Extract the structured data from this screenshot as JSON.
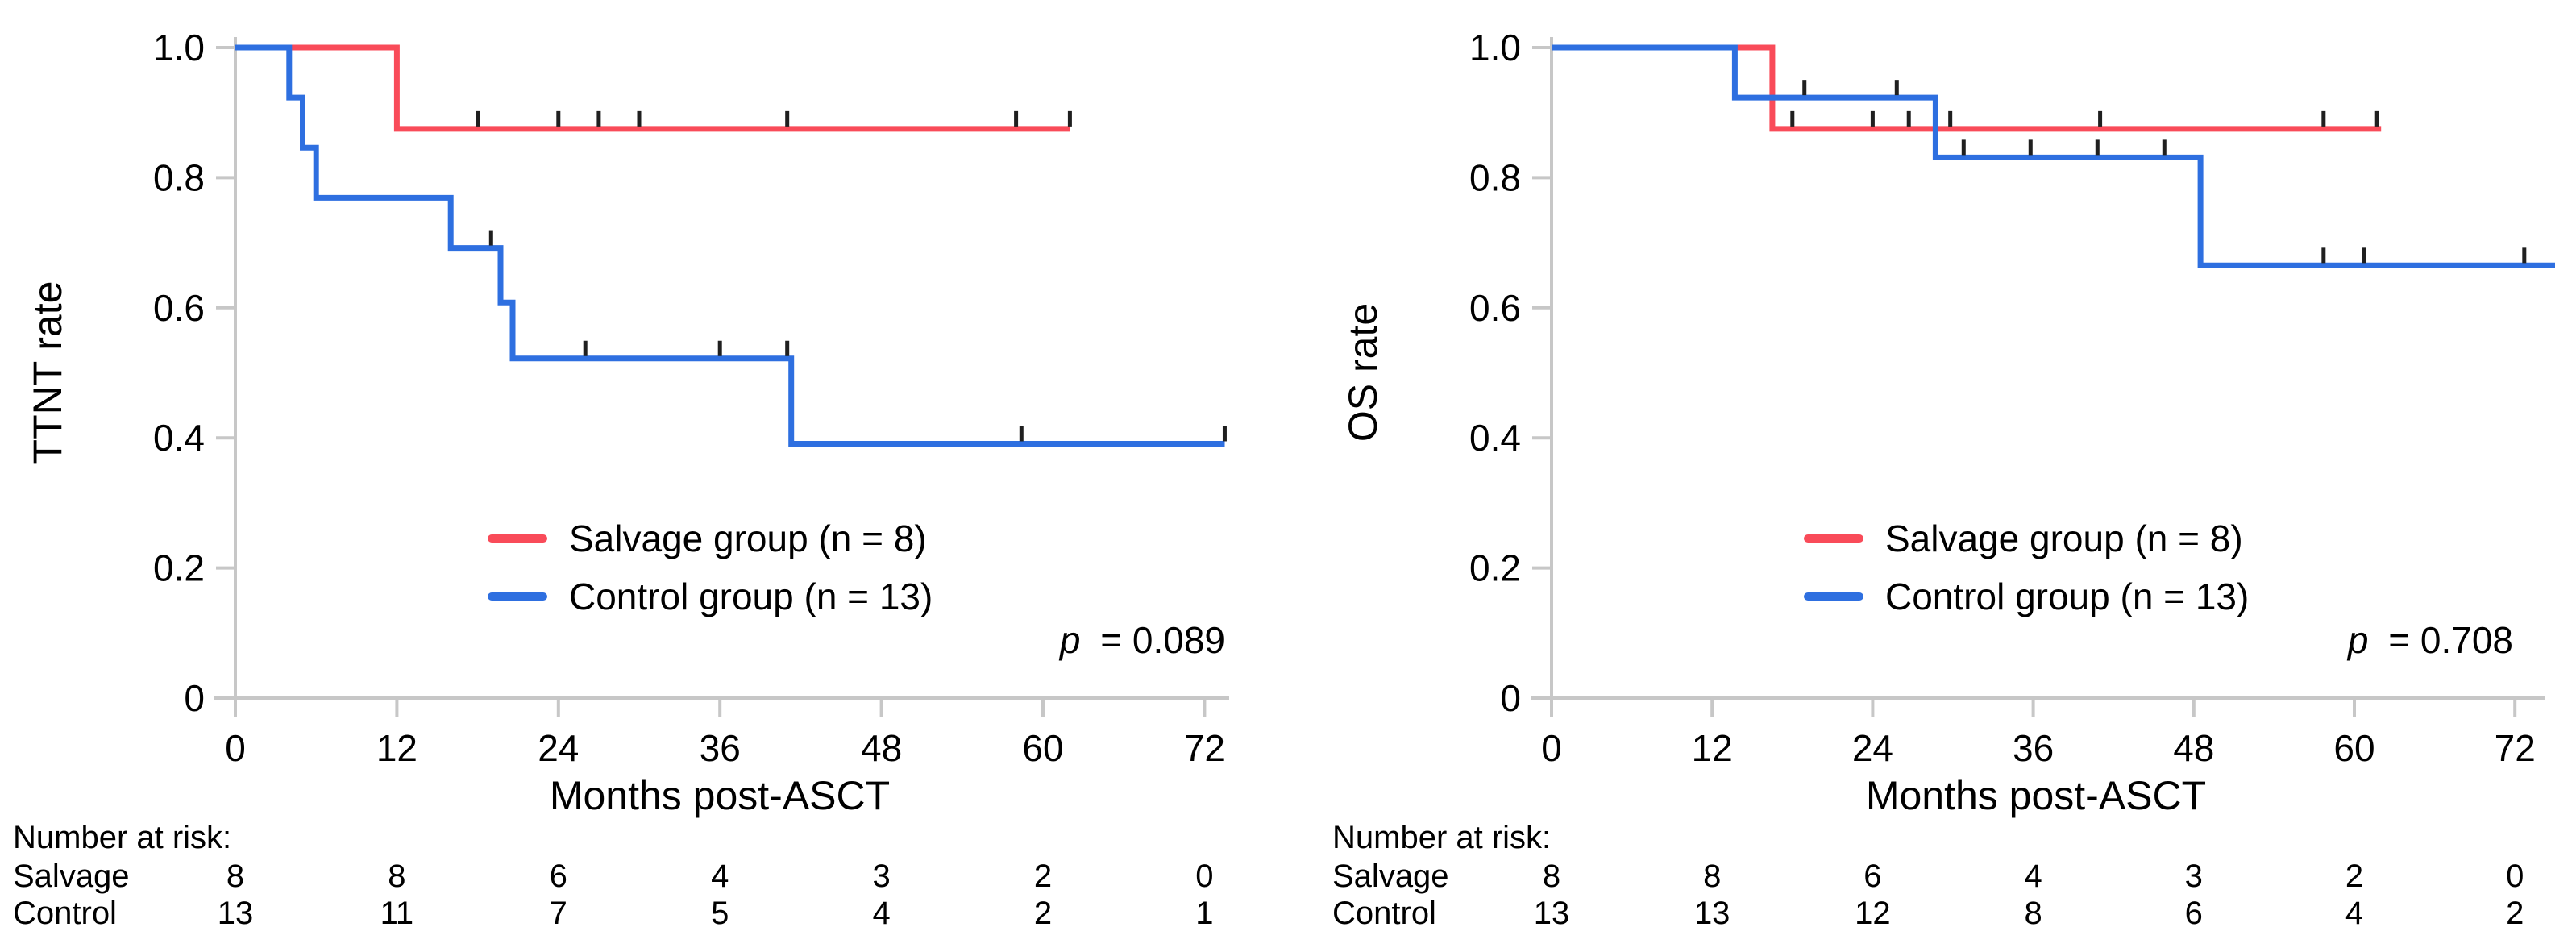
{
  "figure": {
    "colors": {
      "salvage": "#f94b59",
      "control": "#2e6fe0",
      "axis": "#c7c7c7",
      "censor": "#1f1f1f"
    },
    "chart_data": [
      {
        "id": "ttnt",
        "type": "line",
        "km_style": "step",
        "ylabel": "TTNT rate",
        "xlabel": "Months post-ASCT",
        "p_value": {
          "var": "p",
          "rest": "= 0.089"
        },
        "xlim": [
          0,
          76
        ],
        "ylim": [
          0,
          1.0
        ],
        "grid": false,
        "legend_position": "lower-left-inside",
        "x_ticks": [
          0,
          12,
          24,
          36,
          48,
          60,
          72
        ],
        "y_ticks": [
          "1.0",
          "0.8",
          "0.6",
          "0.4",
          "0.2",
          "0"
        ],
        "y_tick_values": [
          1.0,
          0.8,
          0.6,
          0.4,
          0.2,
          0
        ],
        "legend": [
          {
            "label": "Salvage group (n = 8)",
            "color": "#f94b59"
          },
          {
            "label": "Control group (n = 13)",
            "color": "#2e6fe0"
          }
        ],
        "series": [
          {
            "name": "Salvage group",
            "color": "#f94b59",
            "steps": [
              [
                0,
                1.0
              ],
              [
                12,
                1.0
              ],
              [
                12,
                0.875
              ],
              [
                62,
                0.875
              ]
            ],
            "censors": [
              [
                18,
                0.875
              ],
              [
                24,
                0.875
              ],
              [
                27,
                0.875
              ],
              [
                30,
                0.875
              ],
              [
                41,
                0.875
              ],
              [
                58,
                0.875
              ],
              [
                62,
                0.875
              ]
            ]
          },
          {
            "name": "Control group",
            "color": "#2e6fe0",
            "steps": [
              [
                0,
                1.0
              ],
              [
                4,
                1.0
              ],
              [
                4,
                0.923
              ],
              [
                5,
                0.923
              ],
              [
                5,
                0.846
              ],
              [
                6,
                0.846
              ],
              [
                6,
                0.769
              ],
              [
                16,
                0.769
              ],
              [
                16,
                0.692
              ],
              [
                19.7,
                0.692
              ],
              [
                19.7,
                0.608
              ],
              [
                20.6,
                0.608
              ],
              [
                20.6,
                0.522
              ],
              [
                41.3,
                0.522
              ],
              [
                41.3,
                0.391
              ],
              [
                73.5,
                0.391
              ]
            ],
            "censors": [
              [
                19,
                0.692
              ],
              [
                26,
                0.522
              ],
              [
                36,
                0.522
              ],
              [
                41,
                0.522
              ],
              [
                58.4,
                0.391
              ],
              [
                73.5,
                0.391
              ]
            ]
          }
        ],
        "risk_table": {
          "header": "Number at risk:",
          "time_points": [
            0,
            12,
            24,
            36,
            48,
            60,
            72
          ],
          "rows": [
            {
              "label": "Salvage",
              "counts": [
                8,
                8,
                6,
                4,
                3,
                2,
                0
              ]
            },
            {
              "label": "Control",
              "counts": [
                13,
                11,
                7,
                5,
                4,
                2,
                1
              ]
            }
          ]
        }
      },
      {
        "id": "os",
        "type": "line",
        "km_style": "step",
        "ylabel": "OS rate",
        "xlabel": "Months post-ASCT",
        "p_value": {
          "var": "p",
          "rest": "= 0.708"
        },
        "xlim": [
          0,
          76
        ],
        "ylim": [
          0,
          1.0
        ],
        "grid": false,
        "legend_position": "lower-left-inside",
        "x_ticks": [
          0,
          12,
          24,
          36,
          48,
          60,
          72
        ],
        "y_ticks": [
          "1.0",
          "0.8",
          "0.6",
          "0.4",
          "0.2",
          "0"
        ],
        "y_tick_values": [
          1.0,
          0.8,
          0.6,
          0.4,
          0.2,
          0
        ],
        "legend": [
          {
            "label": "Salvage group (n = 8)",
            "color": "#f94b59"
          },
          {
            "label": "Control group (n = 13)",
            "color": "#2e6fe0"
          }
        ],
        "series": [
          {
            "name": "Salvage group",
            "color": "#f94b59",
            "steps": [
              [
                0,
                1.0
              ],
              [
                16.5,
                1.0
              ],
              [
                16.5,
                0.875
              ],
              [
                62,
                0.875
              ]
            ],
            "censors": [
              [
                18,
                0.875
              ],
              [
                24,
                0.875
              ],
              [
                26.7,
                0.875
              ],
              [
                29.8,
                0.875
              ],
              [
                41,
                0.875
              ],
              [
                57.7,
                0.875
              ],
              [
                61.7,
                0.875
              ]
            ]
          },
          {
            "name": "Control group",
            "color": "#2e6fe0",
            "steps": [
              [
                0,
                1.0
              ],
              [
                13.7,
                1.0
              ],
              [
                13.7,
                0.923
              ],
              [
                28.7,
                0.923
              ],
              [
                28.7,
                0.831
              ],
              [
                48.5,
                0.831
              ],
              [
                48.5,
                0.665
              ],
              [
                75,
                0.665
              ]
            ],
            "censors": [
              [
                18.9,
                0.923
              ],
              [
                25.8,
                0.923
              ],
              [
                30.8,
                0.831
              ],
              [
                35.8,
                0.831
              ],
              [
                40.8,
                0.831
              ],
              [
                45.8,
                0.831
              ],
              [
                57.7,
                0.665
              ],
              [
                60.7,
                0.665
              ],
              [
                72.7,
                0.665
              ]
            ]
          }
        ],
        "risk_table": {
          "header": "Number at risk:",
          "time_points": [
            0,
            12,
            24,
            36,
            48,
            60,
            72
          ],
          "rows": [
            {
              "label": "Salvage",
              "counts": [
                8,
                8,
                6,
                4,
                3,
                2,
                0
              ]
            },
            {
              "label": "Control",
              "counts": [
                13,
                13,
                12,
                8,
                6,
                4,
                2
              ]
            }
          ]
        }
      }
    ]
  }
}
